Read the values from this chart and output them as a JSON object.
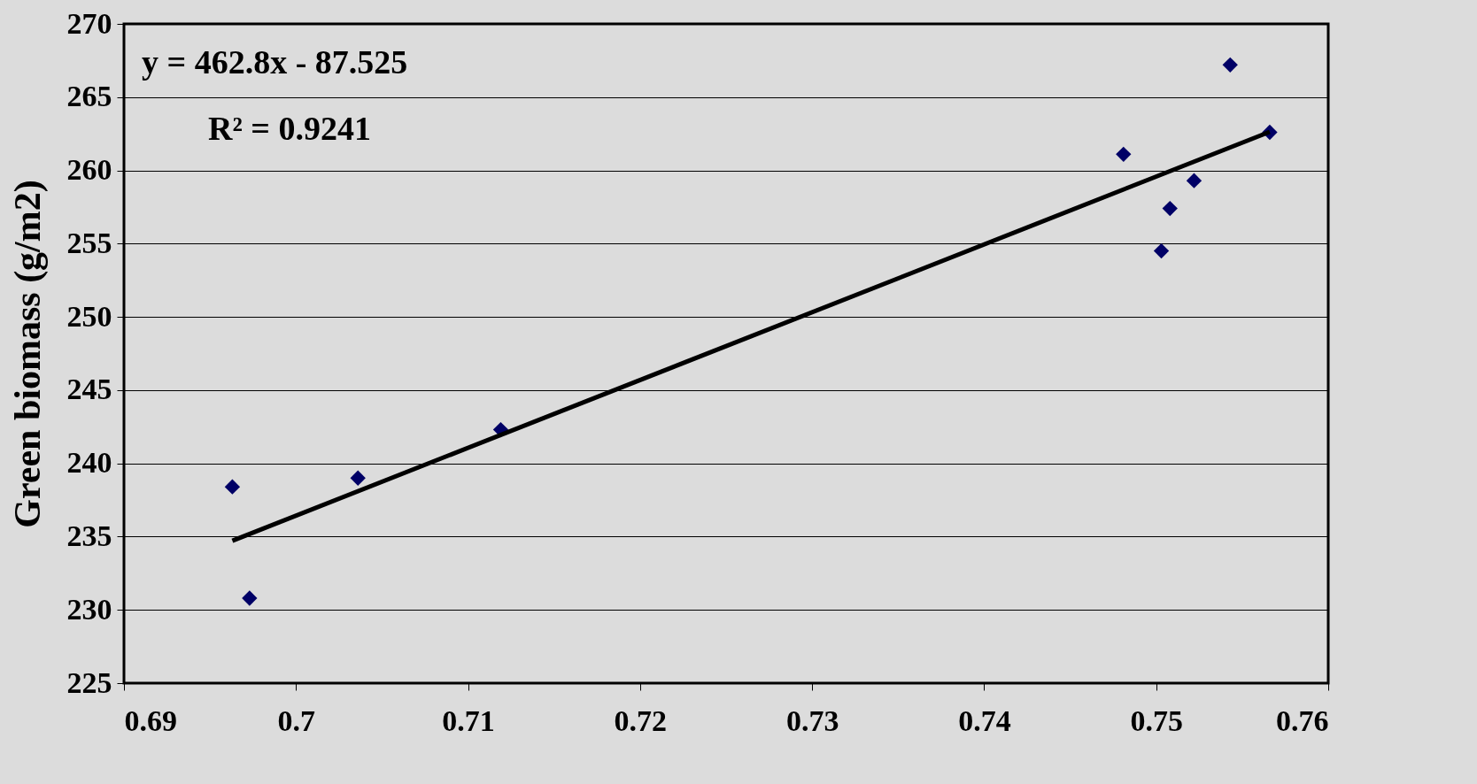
{
  "chart_data": {
    "type": "scatter",
    "ylabel": "Green biomass (g/m2)",
    "annotations": [
      "y = 462.8x - 87.525",
      "R² = 0.9241"
    ],
    "xlim": [
      0.69,
      0.76
    ],
    "xticks": [
      0.69,
      0.7,
      0.71,
      0.72,
      0.73,
      0.74,
      0.75,
      0.76
    ],
    "ylim": [
      225,
      270
    ],
    "yticks": [
      225,
      230,
      235,
      240,
      245,
      250,
      255,
      260,
      265,
      270
    ],
    "grid": "y",
    "legend": false,
    "series": [
      {
        "marker": "diamond",
        "color": "#000066",
        "x": [
          0.6963,
          0.6973,
          0.7036,
          0.7119,
          0.7481,
          0.7503,
          0.7508,
          0.7522,
          0.7543,
          0.7566
        ],
        "values": [
          238.4,
          230.8,
          239.0,
          242.3,
          261.1,
          254.5,
          257.4,
          259.3,
          267.2,
          262.6
        ]
      },
      {
        "type": "line",
        "line_style": "solid",
        "color": "#000000",
        "x": [
          0.6963,
          0.7566
        ],
        "values": [
          234.72,
          262.63
        ]
      }
    ]
  }
}
